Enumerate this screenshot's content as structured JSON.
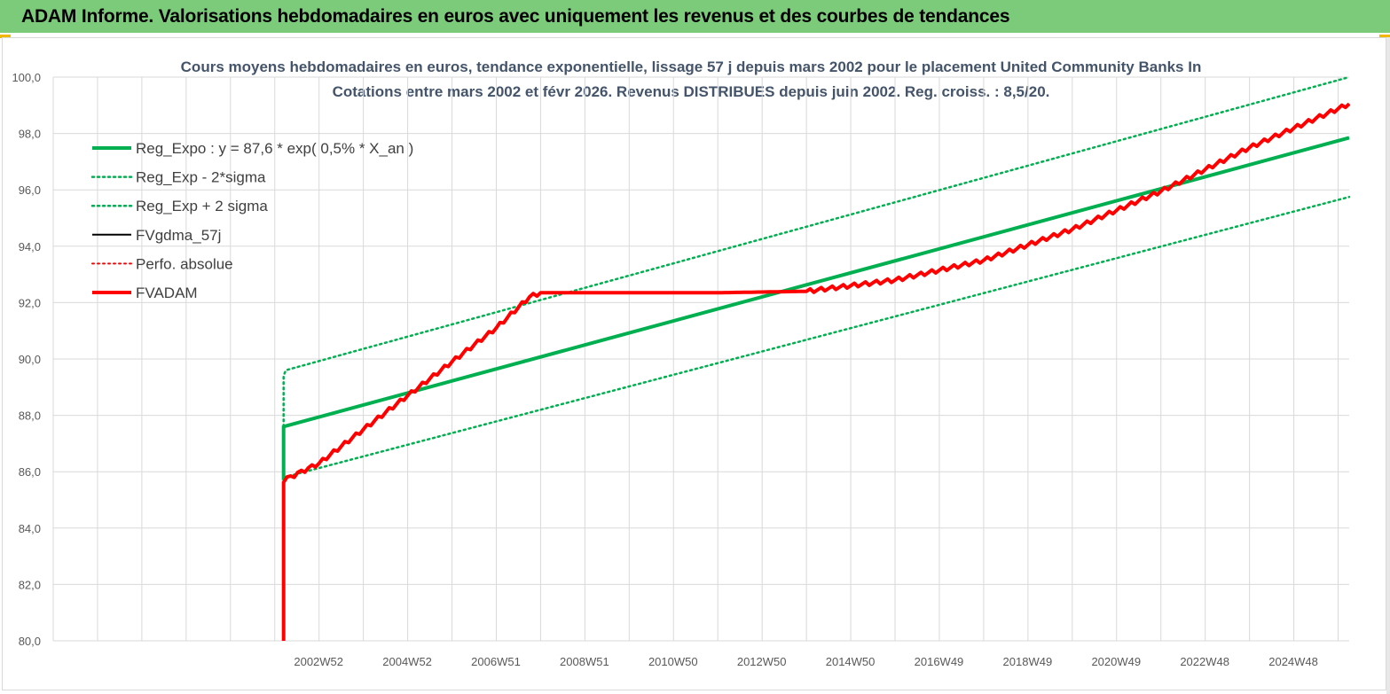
{
  "header": {
    "title": "ADAM Informe. Valorisations hebdomadaires en euros avec uniquement les revenus et des courbes de tendances"
  },
  "colors": {
    "banner": "#7ccb7a",
    "green": "#00b050",
    "red": "#ff0000",
    "black": "#000000",
    "grid": "#d9d9d9",
    "title": "#44546a"
  },
  "chart_data": {
    "type": "line",
    "title_lines": [
      "Cours moyens hebdomadaires en euros, tendance exponentielle, lissage 57 j depuis mars 2002 pour le placement United Community Banks In",
      "Cotations entre mars 2002 et févr 2026. Revenus DISTRIBUES depuis juin 2002. Reg. croiss. : 8,5/20."
    ],
    "ylim": [
      80,
      100
    ],
    "y_ticks": [
      "80,0",
      "82,0",
      "84,0",
      "86,0",
      "88,0",
      "90,0",
      "92,0",
      "94,0",
      "96,0",
      "98,0",
      "100,0"
    ],
    "x_range": [
      1997.0,
      2026.25
    ],
    "x_ticks": [
      {
        "label": "2002W52",
        "x": 2002.99
      },
      {
        "label": "2004W52",
        "x": 2004.99
      },
      {
        "label": "2006W51",
        "x": 2006.99
      },
      {
        "label": "2008W51",
        "x": 2008.99
      },
      {
        "label": "2010W50",
        "x": 2010.99
      },
      {
        "label": "2012W50",
        "x": 2012.99
      },
      {
        "label": "2014W50",
        "x": 2014.99
      },
      {
        "label": "2016W49",
        "x": 2016.99
      },
      {
        "label": "2018W49",
        "x": 2018.99
      },
      {
        "label": "2020W49",
        "x": 2020.99
      },
      {
        "label": "2022W48",
        "x": 2022.99
      },
      {
        "label": "2024W48",
        "x": 2024.99
      }
    ],
    "grid": true,
    "legend_position": "top-left",
    "series": [
      {
        "name": "Reg_Expo : y = 87,6 * exp( 0,5% *  X_an )",
        "color": "#00b050",
        "style": "solid",
        "width": 4,
        "x": [
          2002.2,
          2002.2,
          2026.25
        ],
        "y": [
          85.7,
          87.6,
          97.85
        ]
      },
      {
        "name": "Reg_Exp - 2*sigma",
        "color": "#00b050",
        "style": "dotted",
        "width": 2.5,
        "x": [
          2002.2,
          2026.25
        ],
        "y": [
          85.8,
          95.75
        ]
      },
      {
        "name": "Reg_Exp + 2 sigma",
        "color": "#00b050",
        "style": "dotted",
        "width": 2.5,
        "x": [
          2002.2,
          2002.2,
          2002.25,
          2026.25
        ],
        "y": [
          87.6,
          89.4,
          89.6,
          100.0
        ]
      },
      {
        "name": "FVgdma_57j",
        "color": "#000000",
        "style": "solid",
        "width": 2,
        "x": [
          2002.2,
          2003.0,
          2004.0,
          2005.0,
          2006.0,
          2007.0,
          2007.75,
          2008.0,
          2012.0,
          2014.0,
          2016.0,
          2018.0,
          2020.0,
          2022.0,
          2024.0,
          2026.25
        ],
        "y": [
          85.7,
          86.3,
          87.5,
          88.7,
          89.9,
          91.1,
          92.2,
          92.35,
          92.35,
          92.4,
          92.8,
          93.5,
          94.6,
          95.95,
          97.5,
          99.05
        ]
      },
      {
        "name": "Perfo. absolue",
        "color": "#ff0000",
        "style": "dotted",
        "width": 2,
        "x": [
          2002.2,
          2003.0,
          2004.0,
          2005.0,
          2006.0,
          2007.0,
          2007.75,
          2008.0,
          2012.0,
          2014.0,
          2016.0,
          2018.0,
          2020.0,
          2022.0,
          2024.0,
          2026.25
        ],
        "y": [
          85.7,
          86.3,
          87.5,
          88.7,
          89.9,
          91.1,
          92.2,
          92.35,
          92.35,
          92.4,
          92.8,
          93.5,
          94.6,
          95.95,
          97.5,
          99.05
        ]
      },
      {
        "name": "FVADAM",
        "color": "#ff0000",
        "style": "solid",
        "width": 4,
        "x": [
          2002.2,
          2002.2,
          2003.0,
          2004.0,
          2005.0,
          2006.0,
          2007.0,
          2007.75,
          2008.0,
          2012.0,
          2014.0,
          2016.0,
          2018.0,
          2020.0,
          2022.0,
          2024.0,
          2026.25
        ],
        "y": [
          80.0,
          85.7,
          86.3,
          87.5,
          88.7,
          89.9,
          91.1,
          92.2,
          92.35,
          92.35,
          92.4,
          92.8,
          93.5,
          94.6,
          95.95,
          97.5,
          99.05
        ]
      }
    ]
  }
}
